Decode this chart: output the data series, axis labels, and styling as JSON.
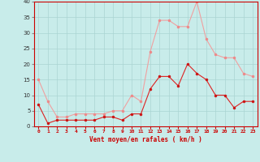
{
  "hours": [
    0,
    1,
    2,
    3,
    4,
    5,
    6,
    7,
    8,
    9,
    10,
    11,
    12,
    13,
    14,
    15,
    16,
    17,
    18,
    19,
    20,
    21,
    22,
    23
  ],
  "vent_moyen": [
    7,
    1,
    2,
    2,
    2,
    2,
    2,
    3,
    3,
    2,
    4,
    4,
    12,
    16,
    16,
    13,
    20,
    17,
    15,
    10,
    10,
    6,
    8,
    8
  ],
  "rafales": [
    15,
    8,
    3,
    3,
    4,
    4,
    4,
    4,
    5,
    5,
    10,
    8,
    24,
    34,
    34,
    32,
    32,
    40,
    28,
    23,
    22,
    22,
    17,
    16
  ],
  "xlabel": "Vent moyen/en rafales ( km/h )",
  "ylim": [
    0,
    40
  ],
  "yticks": [
    0,
    5,
    10,
    15,
    20,
    25,
    30,
    35,
    40
  ],
  "bg_color": "#c8ecea",
  "grid_color": "#aad4d2",
  "line_moyen_color": "#dd2222",
  "line_rafales_color": "#f0a0a0",
  "marker_color_moyen": "#cc1111",
  "marker_color_rafales": "#ee8888"
}
